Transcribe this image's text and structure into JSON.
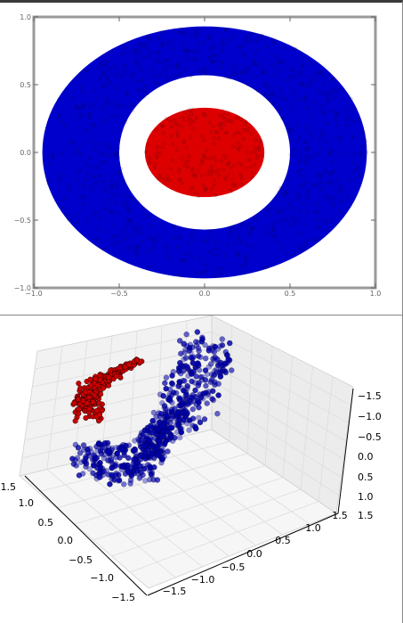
{
  "chart_data": [
    {
      "type": "scatter",
      "title": "",
      "xlabel": "",
      "ylabel": "",
      "xlim": [
        -1.0,
        1.0
      ],
      "ylim": [
        -1.0,
        1.0
      ],
      "xticks": [
        "−1.0",
        "−0.5",
        "0.0",
        "0.5",
        "1.0"
      ],
      "yticks": [
        "1.0",
        "0.5",
        "0.0",
        "−0.5",
        "−1.0"
      ],
      "grid": false,
      "series": [
        {
          "color": "#0000cc",
          "shape": "annulus",
          "x_radius_range": [
            0.5,
            0.95
          ],
          "y_radius_range": [
            0.57,
            0.93
          ]
        },
        {
          "color": "#dd0000",
          "shape": "disc",
          "x_radius": 0.35,
          "y_radius": 0.33
        }
      ]
    },
    {
      "type": "scatter3d",
      "title": "",
      "xlim": [
        -1.5,
        1.5
      ],
      "ylim": [
        -1.5,
        1.5
      ],
      "zlim": [
        -1.5,
        1.5
      ],
      "xticks": [
        "−1.5",
        "−1.0",
        "−0.5",
        "0.0",
        "0.5",
        "1.0",
        "1.5"
      ],
      "yticks": [
        "1.5",
        "1.0",
        "0.5",
        "0.0",
        "−0.5",
        "−1.0",
        "−1.5"
      ],
      "zticks": [
        "−1.5",
        "−1.0",
        "−0.5",
        "0.0",
        "0.5",
        "1.0",
        "1.5"
      ],
      "grid": true,
      "series": [
        {
          "color": "#0000aa"
        },
        {
          "color": "#cc0000"
        }
      ]
    }
  ]
}
